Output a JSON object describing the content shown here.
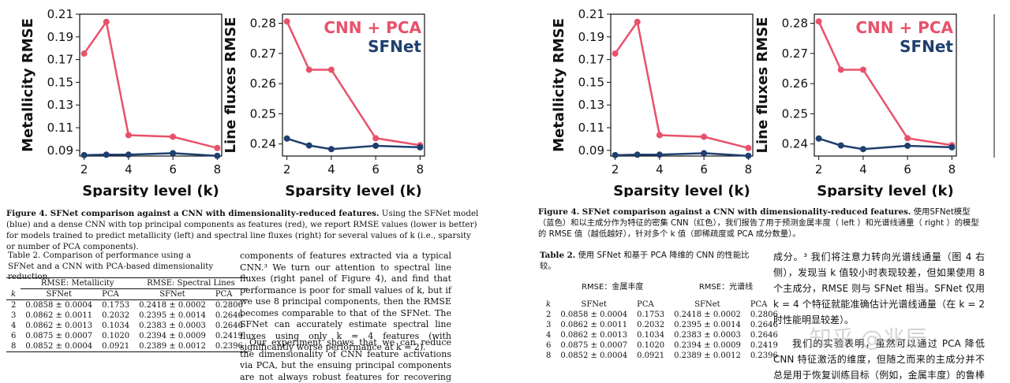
{
  "chart_data": [
    {
      "type": "line",
      "x": [
        2,
        3,
        4,
        6,
        8
      ],
      "series": [
        {
          "values": [
            0.1753,
            0.2032,
            0.1034,
            0.102,
            0.0921
          ],
          "color": "#e8526b"
        },
        {
          "values": [
            0.0858,
            0.0862,
            0.0862,
            0.0875,
            0.0852
          ],
          "color": "#1f3f6e"
        }
      ],
      "xlabel": "Sparsity level (k)",
      "ylabel": "Metallicity RMSE",
      "xticks": [
        "2",
        "4",
        "6",
        "8"
      ],
      "yticks": [
        "0.09",
        "0.11",
        "0.13",
        "0.15",
        "0.17",
        "0.19",
        "0.21"
      ],
      "ylim": [
        0.085,
        0.21
      ],
      "xlim": [
        1.8,
        8.2
      ]
    },
    {
      "type": "line",
      "x": [
        2,
        3,
        4,
        6,
        8
      ],
      "series": [
        {
          "name": "CNN + PCA",
          "values": [
            0.2806,
            0.2646,
            0.2646,
            0.2419,
            0.2396
          ],
          "color": "#e8526b"
        },
        {
          "name": "SFNet",
          "values": [
            0.2418,
            0.2395,
            0.2383,
            0.2394,
            0.2389
          ],
          "color": "#1f3f6e"
        }
      ],
      "xlabel": "Sparsity level (k)",
      "ylabel": "Line fluxes RMSE",
      "xticks": [
        "2",
        "4",
        "6",
        "8"
      ],
      "yticks": [
        "0.24",
        "0.25",
        "0.26",
        "0.27",
        "0.28"
      ],
      "ylim": [
        0.236,
        0.283
      ],
      "xlim": [
        1.8,
        8.2
      ],
      "legend": "top-right"
    }
  ],
  "figure_caption": {
    "label": "Figure 4. SFNet comparison against a CNN with dimensionality-reduced features.",
    "text": "Using the SFNet model (blue) and a dense CNN with top principal components as features (red), we report RMSE values (lower is better) for models trained to predict metallicity (left) and spectral line fluxes (right) for several values of k (i.e., sparsity or number of PCA components).",
    "text_zh": "使用SFNet模型（蓝色）和以主成分作为特征的密集 CNN（红色），我们报告了用于预测金属丰度（ left ）和光谱线通量（ right ）的模型的 RMSE 值（越低越好），针对多个 k 值（即稀疏度或 PCA 成分数量）。"
  },
  "table": {
    "label": "Table 2.",
    "caption": "Comparison of performance using a SFNet and a CNN with PCA-based dimensionality reduction.",
    "caption_zh": "使用 SFNet 和基于 PCA 降维的 CNN 的性能比较。",
    "group_headers": [
      "RMSE: Metallicity",
      "RMSE: Spectral Lines"
    ],
    "group_headers_zh": [
      "RMSE：金属丰度",
      "RMSE：光谱线"
    ],
    "columns": [
      "k",
      "SFNet",
      "PCA",
      "SFNet",
      "PCA"
    ],
    "rows": [
      [
        "2",
        "0.0858 ± 0.0004",
        "0.1753",
        "0.2418 ± 0.0002",
        "0.2806"
      ],
      [
        "3",
        "0.0862 ± 0.0011",
        "0.2032",
        "0.2395 ± 0.0014",
        "0.2646"
      ],
      [
        "4",
        "0.0862 ± 0.0013",
        "0.1034",
        "0.2383 ± 0.0003",
        "0.2646"
      ],
      [
        "6",
        "0.0875 ± 0.0007",
        "0.1020",
        "0.2394 ± 0.0009",
        "0.2419"
      ],
      [
        "8",
        "0.0852 ± 0.0004",
        "0.0921",
        "0.2389 ± 0.0012",
        "0.2396"
      ]
    ]
  },
  "body_text": {
    "p1": "components of features extracted via a typical CNN.³ We turn our attention to spectral line fluxes (right panel of Figure 4), and find that performance is poor for small values of k, but if we use 8 principal components, then the RMSE becomes comparable to that of the SFNet. The SFNet can accurately estimate spectral line fluxes using only k = 4 features (with significantly worse performance at k = 2).",
    "p2": "Our experiment shows that we can reduce the dimensionality of CNN feature activations via PCA, but the ensuing principal components are not always robust features for recovering the training targets (e.g., for",
    "p1_zh": "成分。³ 我们将注意力转向光谱线通量（图 4 右侧），发现当 k 值较小时表现较差，但如果使用 8 个主成分，RMSE 则与 SFNet 相当。SFNet 仅用 k = 4 个特征就能准确估计光谱线通量（在 k = 2 时性能明显较差）。",
    "p2_zh": "我们的实验表明，虽然可以通过 PCA 降低 CNN 特征激活的维度，但随之而来的主成分并不总是用于恢复训练目标（例如，金属丰度）的鲁棒特征。这些困难"
  },
  "watermark": "知乎 @兆辰"
}
